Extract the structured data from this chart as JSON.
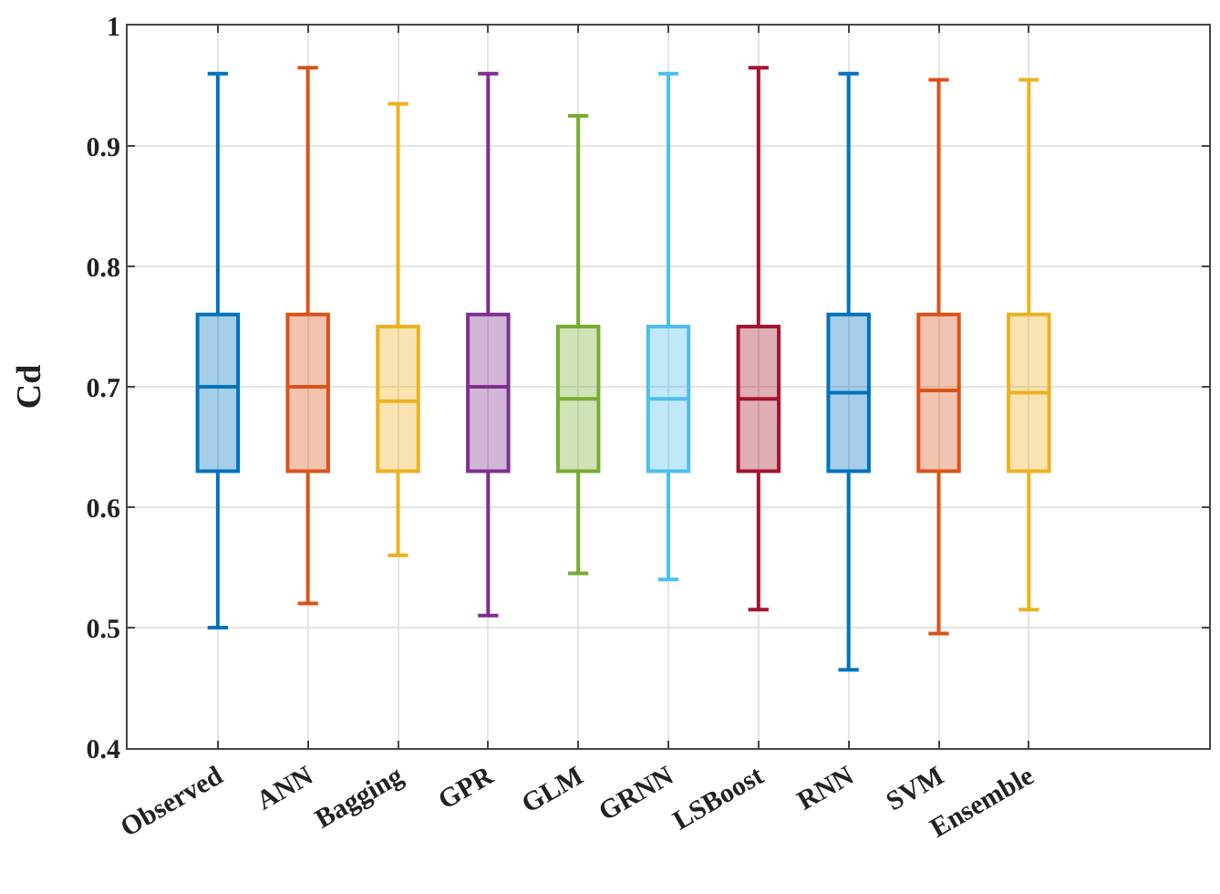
{
  "chart_data": {
    "type": "box",
    "ylabel": "Cd",
    "categories": [
      "Observed",
      "ANN",
      "Bagging",
      "GPR",
      "GLM",
      "GRNN",
      "LSBoost",
      "RNN",
      "SVM",
      "Ensemble"
    ],
    "colors": [
      "#0072bd",
      "#d95319",
      "#edb120",
      "#7e2f8e",
      "#77ac30",
      "#4dbeee",
      "#a2142f",
      "#0072bd",
      "#d95319",
      "#edb120"
    ],
    "boxes": [
      {
        "low": 0.5,
        "q1": 0.63,
        "median": 0.7,
        "q3": 0.76,
        "high": 0.96
      },
      {
        "low": 0.52,
        "q1": 0.63,
        "median": 0.7,
        "q3": 0.76,
        "high": 0.965
      },
      {
        "low": 0.56,
        "q1": 0.63,
        "median": 0.688,
        "q3": 0.75,
        "high": 0.935
      },
      {
        "low": 0.51,
        "q1": 0.63,
        "median": 0.7,
        "q3": 0.76,
        "high": 0.96
      },
      {
        "low": 0.545,
        "q1": 0.63,
        "median": 0.69,
        "q3": 0.75,
        "high": 0.925
      },
      {
        "low": 0.54,
        "q1": 0.63,
        "median": 0.69,
        "q3": 0.75,
        "high": 0.96
      },
      {
        "low": 0.515,
        "q1": 0.63,
        "median": 0.69,
        "q3": 0.75,
        "high": 0.965
      },
      {
        "low": 0.465,
        "q1": 0.63,
        "median": 0.695,
        "q3": 0.76,
        "high": 0.96
      },
      {
        "low": 0.495,
        "q1": 0.63,
        "median": 0.697,
        "q3": 0.76,
        "high": 0.955
      },
      {
        "low": 0.515,
        "q1": 0.63,
        "median": 0.695,
        "q3": 0.76,
        "high": 0.955
      }
    ],
    "ylim": [
      0.4,
      1
    ],
    "yticks": [
      0.4,
      0.5,
      0.6,
      0.7,
      0.8,
      0.9,
      1
    ],
    "grid": true,
    "legend": false
  }
}
